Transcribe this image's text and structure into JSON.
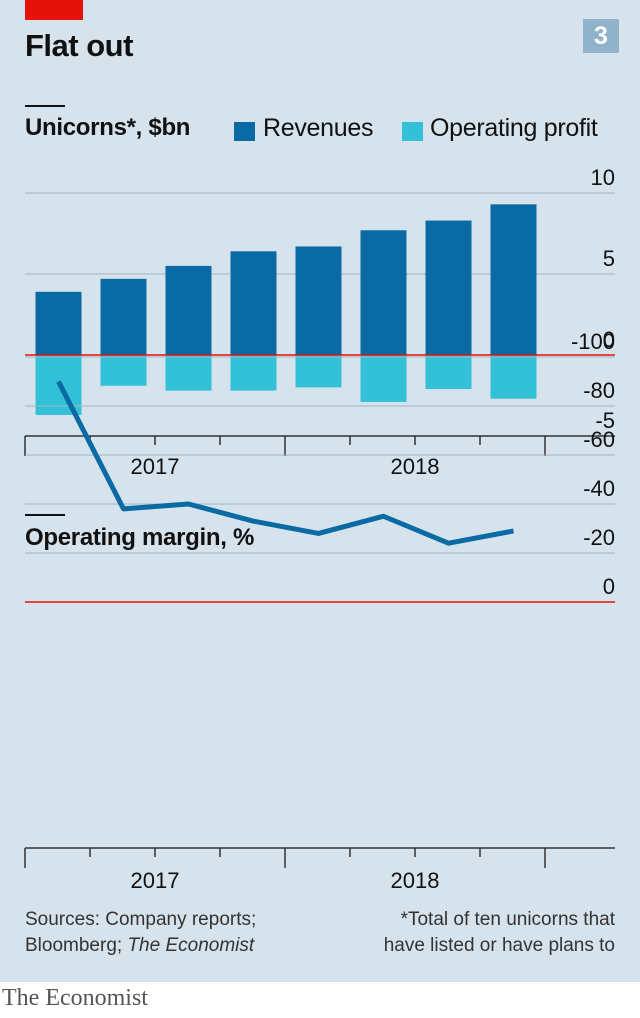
{
  "header": {
    "title": "Flat out",
    "badge": "3"
  },
  "chart_data": [
    {
      "type": "bar",
      "title": "Unicorns*, $bn",
      "categories": [
        "Q1 2017",
        "Q2 2017",
        "Q3 2017",
        "Q4 2017",
        "Q1 2018",
        "Q2 2018",
        "Q3 2018",
        "Q4 2018"
      ],
      "series": [
        {
          "name": "Revenues",
          "color": "#0a6aa3",
          "values": [
            3.9,
            4.7,
            5.5,
            6.4,
            6.7,
            7.7,
            8.3,
            9.3
          ]
        },
        {
          "name": "Operating profit",
          "color": "#33c1d8",
          "values": [
            -3.7,
            -1.9,
            -2.2,
            -2.2,
            -2.0,
            -2.9,
            -2.1,
            -2.7
          ]
        }
      ],
      "ylim": [
        -5,
        10
      ],
      "yticks": [
        "10",
        "5",
        "0",
        "-5"
      ],
      "xlabels": [
        "2017",
        "2018"
      ],
      "zero_line_color": "#e3120b"
    },
    {
      "type": "line",
      "title": "Operating margin, %",
      "categories": [
        "Q1 2017",
        "Q2 2017",
        "Q3 2017",
        "Q4 2017",
        "Q1 2018",
        "Q2 2018",
        "Q3 2018",
        "Q4 2018"
      ],
      "series": [
        {
          "color": "#0a6aa3",
          "values": [
            -90,
            -38,
            -40,
            -33,
            -28,
            -35,
            -24,
            -29
          ]
        }
      ],
      "ylim": [
        -100,
        0
      ],
      "yticks": [
        "0",
        "-20",
        "-40",
        "-60",
        "-80",
        "-100"
      ],
      "xlabels": [
        "2017",
        "2018"
      ],
      "zero_line_color": "#e3120b"
    }
  ],
  "footer": {
    "source_line1": "Sources: Company reports;",
    "source_line2_a": "Bloomberg; ",
    "source_line2_b": "The Economist",
    "note_line1": "*Total of ten unicorns that",
    "note_line2": "have listed or have plans to"
  },
  "brand": "The Economist"
}
